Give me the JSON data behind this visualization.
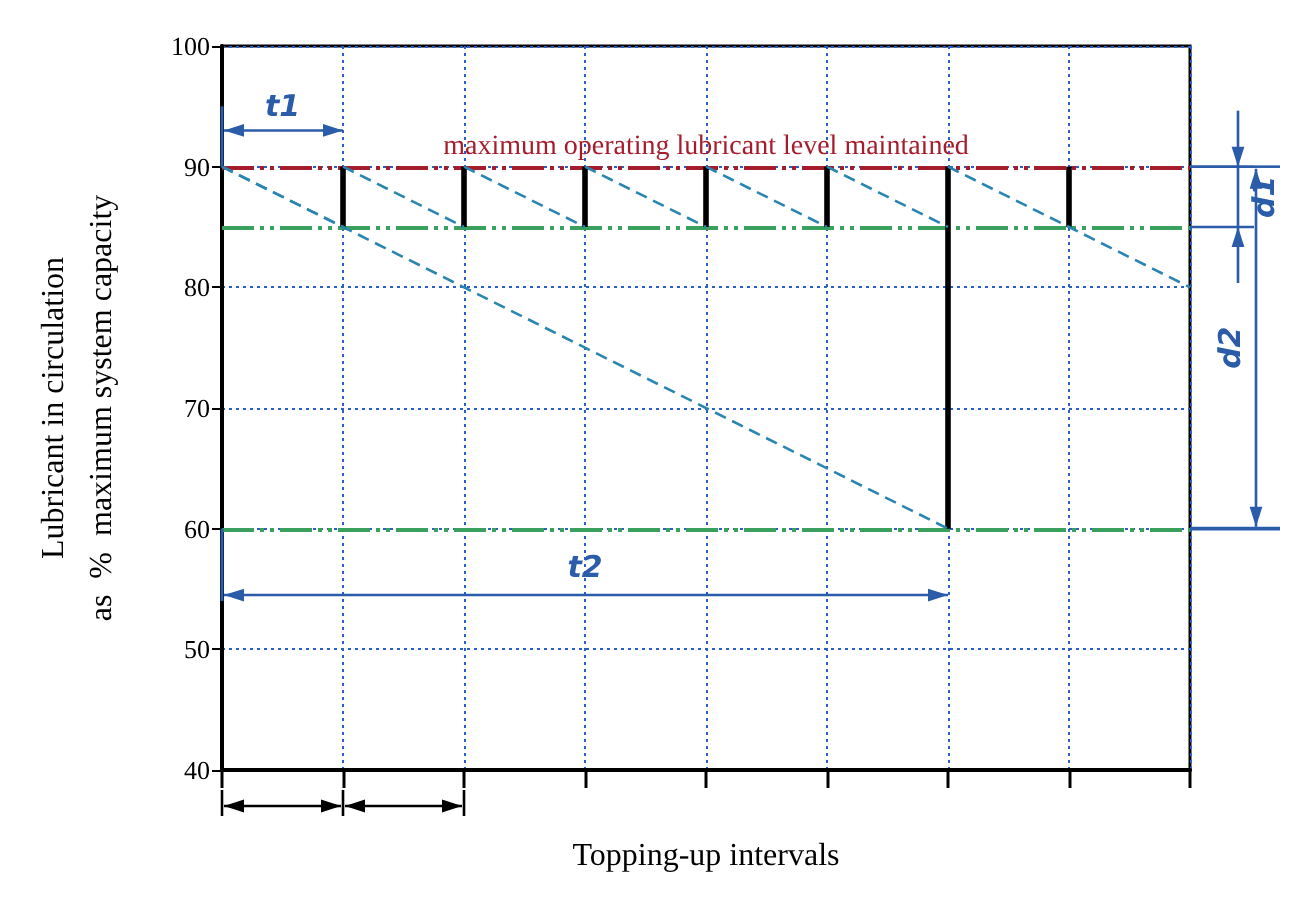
{
  "chart_data": {
    "type": "line",
    "xlabel": "Topping-up intervals",
    "ylabel": "Lubricant in circulation\nas  %  maximum system capacity",
    "categories": [
      null,
      null,
      null,
      null,
      null,
      null,
      null,
      null,
      null
    ],
    "ylim": [
      40,
      100
    ],
    "yticks": [
      40,
      50,
      60,
      70,
      80,
      90,
      100
    ],
    "tick_labels": "y",
    "grid": true,
    "marker": "none",
    "series": [
      {
        "color": "#2a86b0",
        "line_style": "dashed",
        "values": [
          90,
          85,
          null,
          null,
          null,
          null,
          null,
          null,
          null
        ]
      },
      {
        "color": "#2a86b0",
        "line_style": "dashed",
        "values": [
          null,
          90,
          85,
          null,
          null,
          null,
          null,
          null,
          null
        ]
      },
      {
        "color": "#2a86b0",
        "line_style": "dashed",
        "values": [
          null,
          null,
          90,
          85,
          null,
          null,
          null,
          null,
          null
        ]
      },
      {
        "color": "#2a86b0",
        "line_style": "dashed",
        "values": [
          null,
          null,
          null,
          90,
          85,
          null,
          null,
          null,
          null
        ]
      },
      {
        "color": "#2a86b0",
        "line_style": "dashed",
        "values": [
          null,
          null,
          null,
          null,
          90,
          85,
          null,
          null,
          null
        ]
      },
      {
        "color": "#2a86b0",
        "line_style": "dashed",
        "values": [
          null,
          null,
          null,
          null,
          null,
          90,
          85,
          null,
          null
        ]
      },
      {
        "color": "#2a86b0",
        "line_style": "dashed",
        "values": [
          null,
          null,
          null,
          null,
          null,
          null,
          90,
          85,
          80
        ]
      },
      {
        "color": "#2a86b0",
        "line_style": "dashed",
        "values": [
          90,
          85,
          80,
          75,
          70,
          65,
          60,
          null,
          null
        ]
      },
      {
        "type": "bar",
        "color": "#000000",
        "base": [
          null,
          85,
          85,
          85,
          85,
          85,
          60,
          85,
          null
        ],
        "values": [
          null,
          5,
          5,
          5,
          5,
          5,
          30,
          5,
          null
        ]
      }
    ],
    "ref_lines": [
      {
        "axis": "y",
        "value": 90,
        "label": "maximum operating lubricant level maintained",
        "color": "#a51d2d",
        "line_style": "dashed"
      },
      {
        "axis": "y",
        "value": 85,
        "label": null,
        "color": "#3aa05e",
        "line_style": "dashed"
      },
      {
        "axis": "y",
        "value": 60,
        "label": null,
        "color": "#3aa05e",
        "line_style": "dashed"
      }
    ],
    "annotations": [
      "t1",
      "t2",
      "d1",
      "d2"
    ]
  }
}
